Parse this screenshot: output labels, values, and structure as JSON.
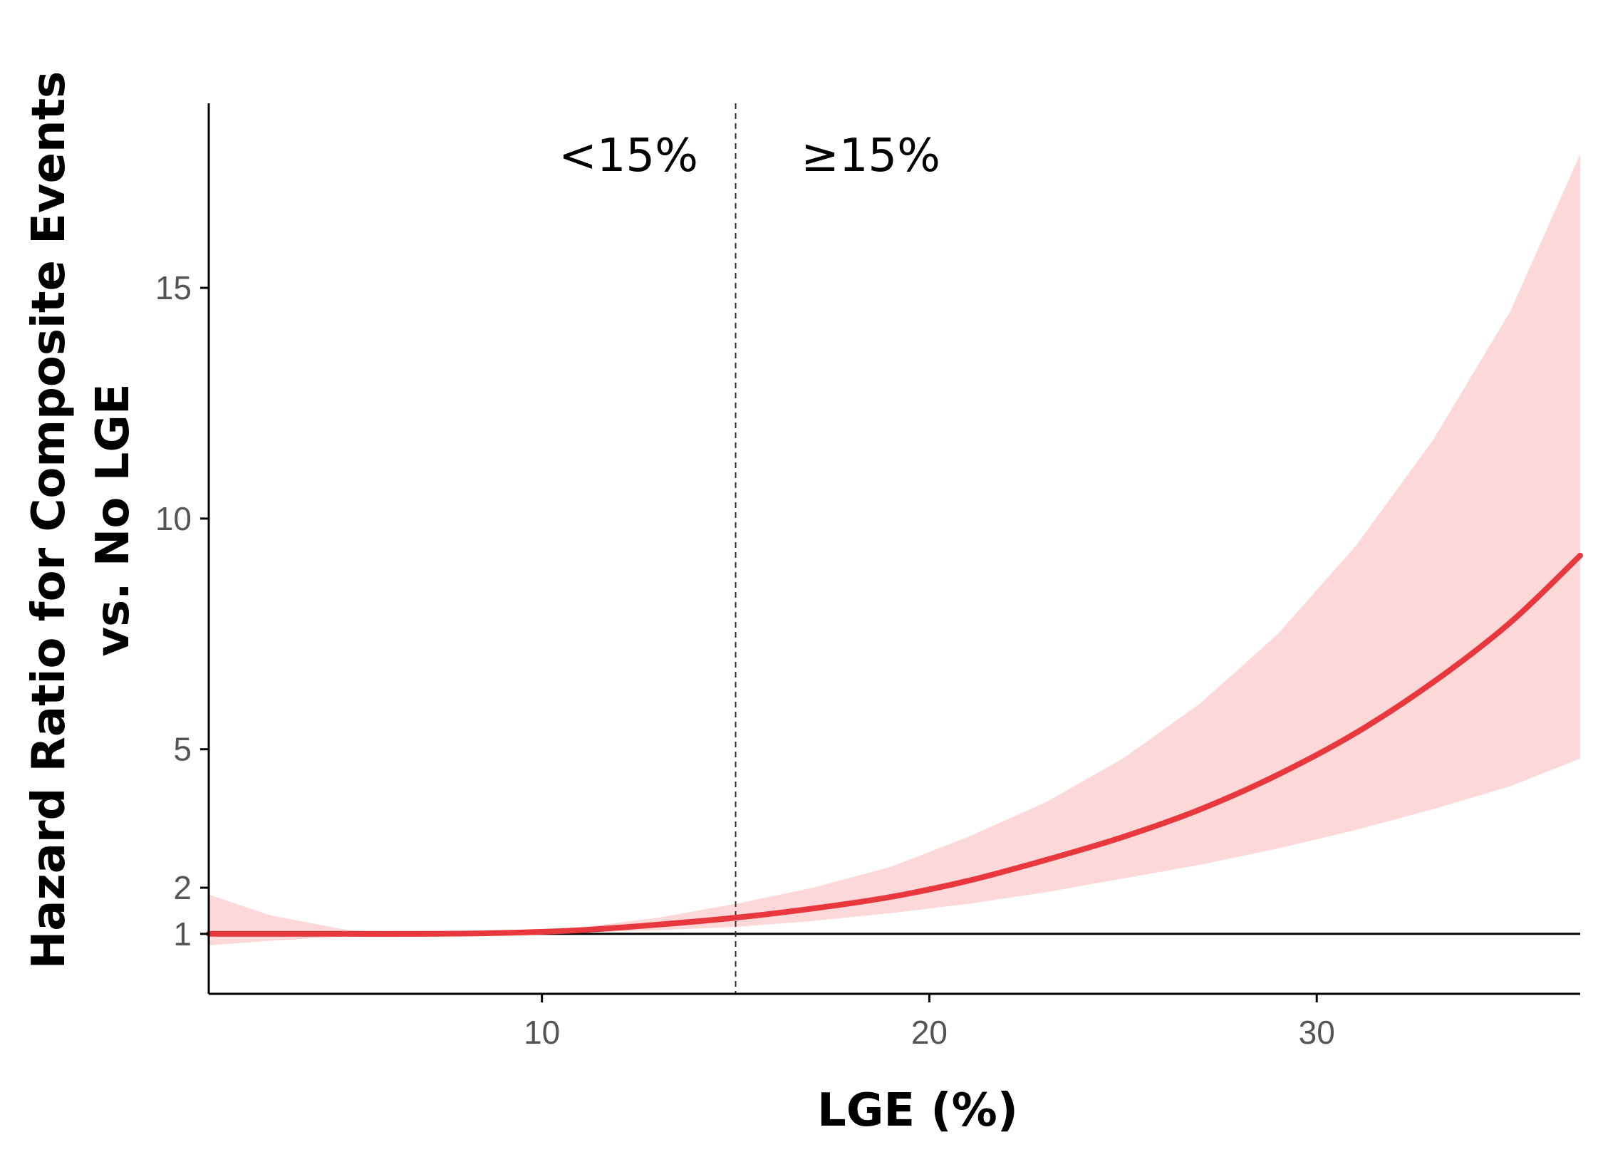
{
  "chart_data": {
    "type": "line",
    "xlabel": "LGE (%)",
    "ylabel_line1": "Hazard Ratio for Composite Events",
    "ylabel_line2": "vs. No LGE",
    "xlim": [
      1.4,
      36.8
    ],
    "ylim": [
      -0.3,
      19.0
    ],
    "xticks": [
      10,
      20,
      30
    ],
    "yticks": [
      1,
      2,
      5,
      10,
      15
    ],
    "reference_line_y": 1,
    "threshold_x": 15,
    "region_labels": {
      "left": "<15%",
      "right": "≥15%"
    },
    "series": [
      {
        "x": [
          1.4,
          3,
          5,
          7,
          9,
          11,
          13,
          15,
          17,
          19,
          21,
          23,
          25,
          27,
          29,
          31,
          33,
          35,
          36.8
        ],
        "y": [
          1.0,
          1.0,
          1.0,
          1.0,
          1.02,
          1.08,
          1.2,
          1.35,
          1.55,
          1.8,
          2.15,
          2.6,
          3.1,
          3.7,
          4.45,
          5.35,
          6.45,
          7.75,
          9.2
        ],
        "lower": [
          0.75,
          0.85,
          0.95,
          0.98,
          1.0,
          1.03,
          1.08,
          1.15,
          1.28,
          1.45,
          1.65,
          1.9,
          2.2,
          2.5,
          2.85,
          3.25,
          3.7,
          4.2,
          4.8
        ],
        "upper": [
          1.85,
          1.4,
          1.08,
          1.03,
          1.04,
          1.14,
          1.35,
          1.65,
          2.0,
          2.45,
          3.1,
          3.85,
          4.8,
          6.0,
          7.5,
          9.4,
          11.7,
          14.5,
          17.9
        ]
      }
    ],
    "colors": {
      "line": "#e8383d",
      "band": "#fcd8d8",
      "axis": "#000000"
    },
    "grid": false
  }
}
